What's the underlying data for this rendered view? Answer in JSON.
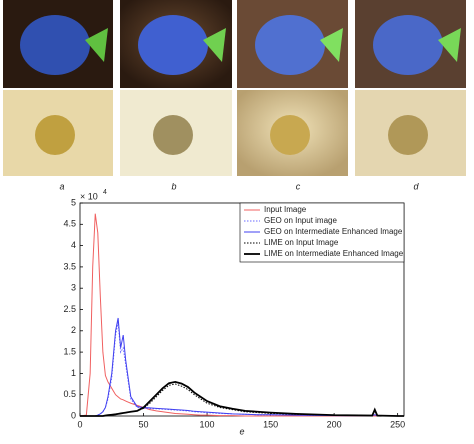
{
  "panels": {
    "labels": [
      "a",
      "b",
      "c",
      "d"
    ]
  },
  "chart_data": {
    "type": "line",
    "panel_label": "e",
    "y_scale_label": {
      "base": "× 10",
      "exponent": "4"
    },
    "x": [
      0,
      5,
      8,
      10,
      12,
      14,
      16,
      18,
      20,
      22,
      25,
      28,
      30,
      32,
      34,
      36,
      40,
      45,
      50,
      55,
      60,
      65,
      70,
      75,
      80,
      85,
      90,
      95,
      100,
      110,
      120,
      130,
      140,
      150,
      170,
      200,
      230,
      232,
      234,
      250,
      255
    ],
    "series": [
      {
        "name": "Input Image",
        "color": "#f06060",
        "style": "solid",
        "width": 1,
        "values": [
          0,
          0.02,
          1.0,
          3.5,
          4.75,
          4.3,
          2.8,
          1.5,
          0.95,
          0.8,
          0.65,
          0.5,
          0.45,
          0.4,
          0.38,
          0.35,
          0.3,
          0.25,
          0.2,
          0.15,
          0.12,
          0.1,
          0.08,
          0.06,
          0.05,
          0.04,
          0.03,
          0.02,
          0.02,
          0.01,
          0.01,
          0,
          0,
          0,
          0,
          0,
          0,
          0,
          0,
          0,
          0
        ]
      },
      {
        "name": "GEO on Input image",
        "color": "#6a6aff",
        "style": "dotted",
        "width": 1,
        "values": [
          0,
          0,
          0,
          0,
          0,
          0.02,
          0.05,
          0.1,
          0.2,
          0.4,
          0.9,
          1.9,
          2.2,
          1.5,
          1.6,
          1.2,
          0.4,
          0.2,
          0.18,
          0.17,
          0.17,
          0.16,
          0.15,
          0.14,
          0.13,
          0.12,
          0.1,
          0.09,
          0.08,
          0.06,
          0.05,
          0.04,
          0.03,
          0.03,
          0.02,
          0.01,
          0.01,
          0.03,
          0.01,
          0,
          0
        ]
      },
      {
        "name": "GEO on Intermediate Enhanced Image",
        "color": "#4040f0",
        "style": "solid",
        "width": 1,
        "values": [
          0,
          0,
          0,
          0,
          0,
          0.02,
          0.05,
          0.1,
          0.2,
          0.45,
          1.0,
          2.0,
          2.3,
          1.6,
          1.9,
          1.3,
          0.45,
          0.22,
          0.2,
          0.19,
          0.18,
          0.17,
          0.16,
          0.15,
          0.14,
          0.13,
          0.11,
          0.1,
          0.09,
          0.07,
          0.05,
          0.04,
          0.03,
          0.03,
          0.02,
          0.01,
          0.01,
          0.03,
          0.01,
          0,
          0
        ]
      },
      {
        "name": "LIME on Input Image",
        "color": "#000000",
        "style": "dotted",
        "width": 1,
        "values": [
          0,
          0,
          0,
          0,
          0,
          0,
          0,
          0,
          0.01,
          0.02,
          0.03,
          0.04,
          0.05,
          0.06,
          0.07,
          0.08,
          0.1,
          0.12,
          0.18,
          0.3,
          0.45,
          0.6,
          0.72,
          0.75,
          0.7,
          0.62,
          0.5,
          0.4,
          0.3,
          0.2,
          0.15,
          0.1,
          0.08,
          0.06,
          0.04,
          0.02,
          0.01,
          0.12,
          0.01,
          0,
          0
        ]
      },
      {
        "name": "LIME on Intermediate Enhanced Image",
        "color": "#000000",
        "style": "solid",
        "width": 1.8,
        "values": [
          0,
          0,
          0,
          0,
          0,
          0,
          0,
          0,
          0.01,
          0.02,
          0.03,
          0.04,
          0.05,
          0.06,
          0.07,
          0.08,
          0.1,
          0.12,
          0.2,
          0.35,
          0.5,
          0.65,
          0.77,
          0.8,
          0.76,
          0.68,
          0.55,
          0.45,
          0.35,
          0.23,
          0.17,
          0.12,
          0.1,
          0.08,
          0.05,
          0.02,
          0.01,
          0.15,
          0.01,
          0,
          0
        ]
      }
    ],
    "xlim": [
      0,
      255
    ],
    "xticks": [
      0,
      50,
      100,
      150,
      200,
      250
    ],
    "ylim": [
      0,
      5
    ],
    "yticks": [
      0,
      0.5,
      1,
      1.5,
      2,
      2.5,
      3,
      3.5,
      4,
      4.5,
      5
    ],
    "grid": false,
    "legend": "top-right"
  }
}
